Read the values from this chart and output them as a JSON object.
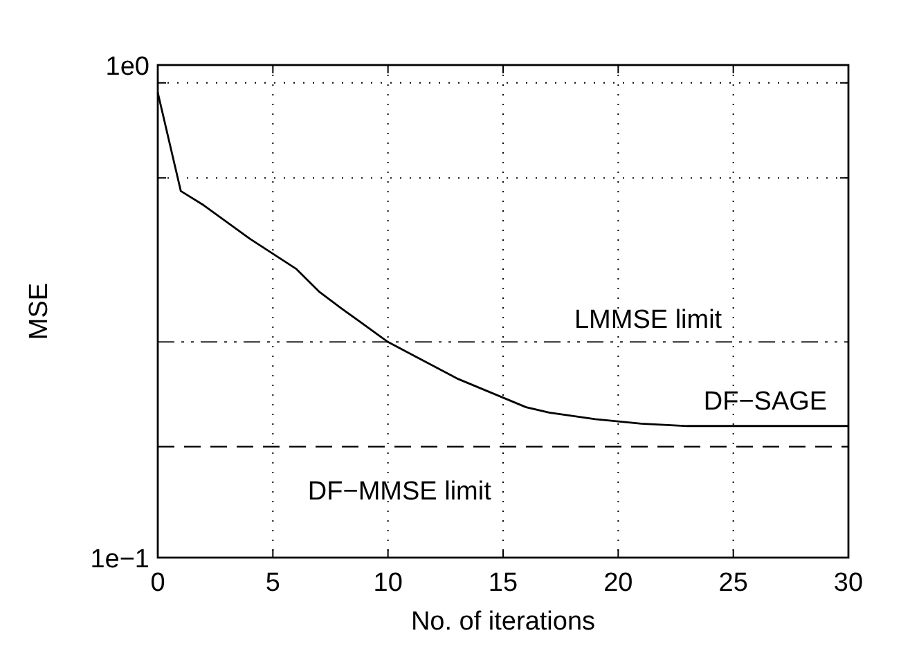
{
  "chart_data": {
    "type": "line",
    "xlabel": "No. of iterations",
    "ylabel": "MSE",
    "log": "y",
    "xlim": [
      0,
      30
    ],
    "xticks": [
      0,
      5,
      10,
      15,
      20,
      25,
      30
    ],
    "ylim": [
      0.1,
      1
    ],
    "yticks": [
      {
        "value": 0.1,
        "label": "1e−1"
      },
      {
        "value": 0.59,
        "label": null
      },
      {
        "value": 0.92,
        "label": null
      },
      {
        "value": 1,
        "label": "1e0"
      }
    ],
    "grid": true,
    "marker": "none",
    "line_style": "solid",
    "series": [
      {
        "name": "DF−SAGE",
        "color": "#000000",
        "x": [
          0,
          1,
          2,
          4,
          6,
          7,
          8,
          10,
          13,
          16,
          17,
          19,
          21,
          23,
          30
        ],
        "values": [
          0.879,
          0.555,
          0.519,
          0.444,
          0.386,
          0.347,
          0.32,
          0.274,
          0.231,
          0.202,
          0.197,
          0.191,
          0.187,
          0.185,
          0.185
        ]
      }
    ],
    "ref_lines": [
      {
        "axis": "y",
        "value": 0.274,
        "label": "LMMSE limit",
        "line_style": "dashdot",
        "color": "#555555"
      },
      {
        "axis": "y",
        "value": 0.168,
        "label": "DF−MMSE limit",
        "line_style": "dashed",
        "color": "#000000"
      }
    ]
  }
}
